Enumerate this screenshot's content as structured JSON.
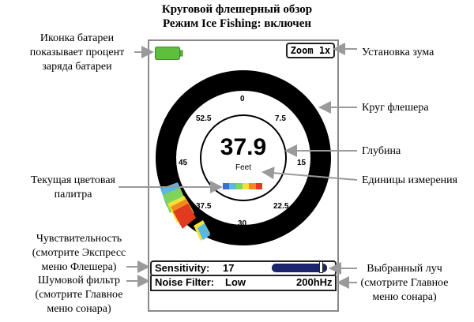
{
  "header": {
    "title_line1": "Круговой флешерный обзор",
    "title_line2": "Режим Ice Fishing: включен"
  },
  "callouts": {
    "battery_icon": [
      "Иконка батареи",
      "показывает процент",
      "заряда батареи"
    ],
    "zoom_setting": "Установка зума",
    "flasher_ring": "Круг флешера",
    "depth": "Глубина",
    "units": "Единицы измерения",
    "palette": [
      "Текущая цветовая",
      "палитра"
    ],
    "sensitivity": [
      "Чувствительность",
      "(смотрите Экспресс",
      "меню Флешера)"
    ],
    "noise_filter": [
      "Шумовой фильтр",
      "(смотрите Главное",
      "меню сонара)"
    ],
    "beam": [
      "Выбранный луч",
      "(смотрите Главное",
      "меню сонара)"
    ]
  },
  "screen": {
    "zoom_label": "Zoom 1x",
    "depth_value": "37.9",
    "depth_units": "Feet",
    "dial_ticks": [
      "0",
      "7.5",
      "15",
      "22.5",
      "30",
      "37.5",
      "45",
      "52.5"
    ],
    "sensitivity_label": "Sensitivity:",
    "sensitivity_value": "17",
    "sensitivity_level": 0.85,
    "noise_filter_label": "Noise Filter:",
    "noise_filter_value": "Low",
    "beam_frequency": "200hHz"
  },
  "colors": {
    "battery_fill": "#5ebf3e",
    "ring": "#000000",
    "palette": [
      "#3b6fd1",
      "#57b8e6",
      "#7ed35a",
      "#f2e03a",
      "#f08a1e",
      "#e23a1f"
    ],
    "sensitivity_bar": "#1c2570"
  }
}
